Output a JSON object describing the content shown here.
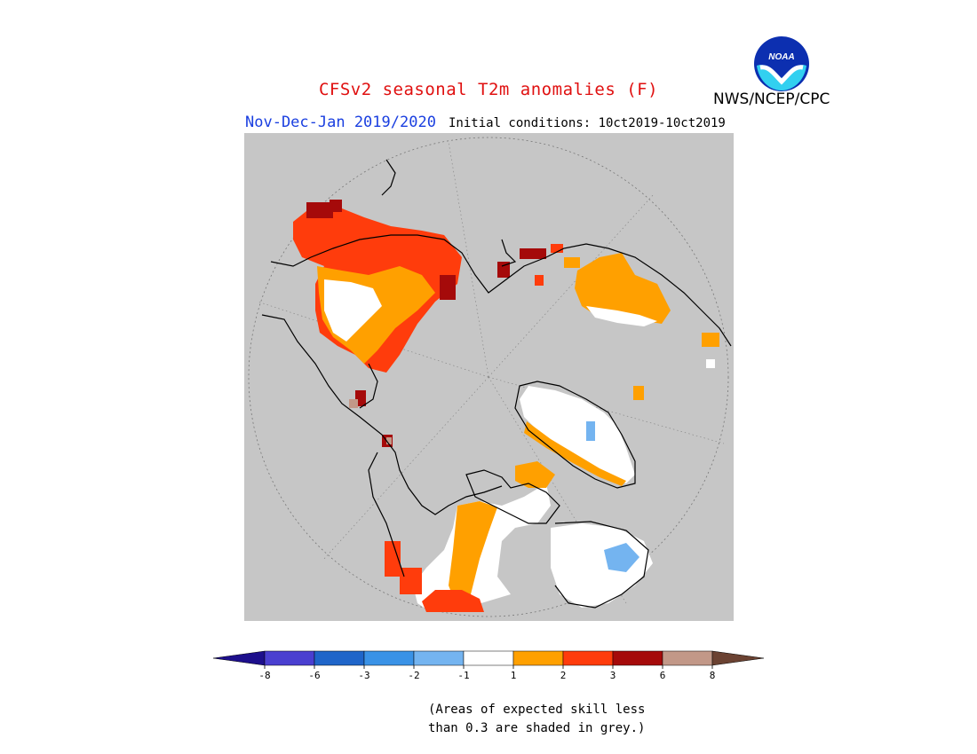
{
  "header": {
    "title": "CFSv2 seasonal T2m anomalies (F)",
    "period": "Nov-Dec-Jan 2019/2020",
    "initial_conditions": "Initial conditions: 10ct2019-10ct2019",
    "agency": "NWS/NCEP/CPC",
    "logo_text": "NOAA"
  },
  "colors": {
    "title": "#e01010",
    "period": "#1a3fe0",
    "grey_mask": "#c6c6c6",
    "coast": "#000000"
  },
  "legend": {
    "tick_labels": [
      "-8",
      "-6",
      "-3",
      "-2",
      "-1",
      "1",
      "2",
      "3",
      "6",
      "8"
    ],
    "bins": [
      {
        "range": "< -8",
        "color": "#1d0f8c"
      },
      {
        "range": "-8 to -6",
        "color": "#4a3fd0"
      },
      {
        "range": "-6 to -3",
        "color": "#1f65c9"
      },
      {
        "range": "-3 to -2",
        "color": "#3a92e6"
      },
      {
        "range": "-2 to -1",
        "color": "#74b4f0"
      },
      {
        "range": "-1 to 1",
        "color": "#ffffff"
      },
      {
        "range": "1 to 2",
        "color": "#ffa000"
      },
      {
        "range": "2 to 3",
        "color": "#ff3c0c"
      },
      {
        "range": "3 to 6",
        "color": "#a50a0a"
      },
      {
        "range": "6 to 8",
        "color": "#c29888"
      },
      {
        "range": "> 8",
        "color": "#6b4232"
      }
    ]
  },
  "note": {
    "line1": "(Areas of expected skill less",
    "line2": "than 0.3 are shaded in grey.)"
  }
}
